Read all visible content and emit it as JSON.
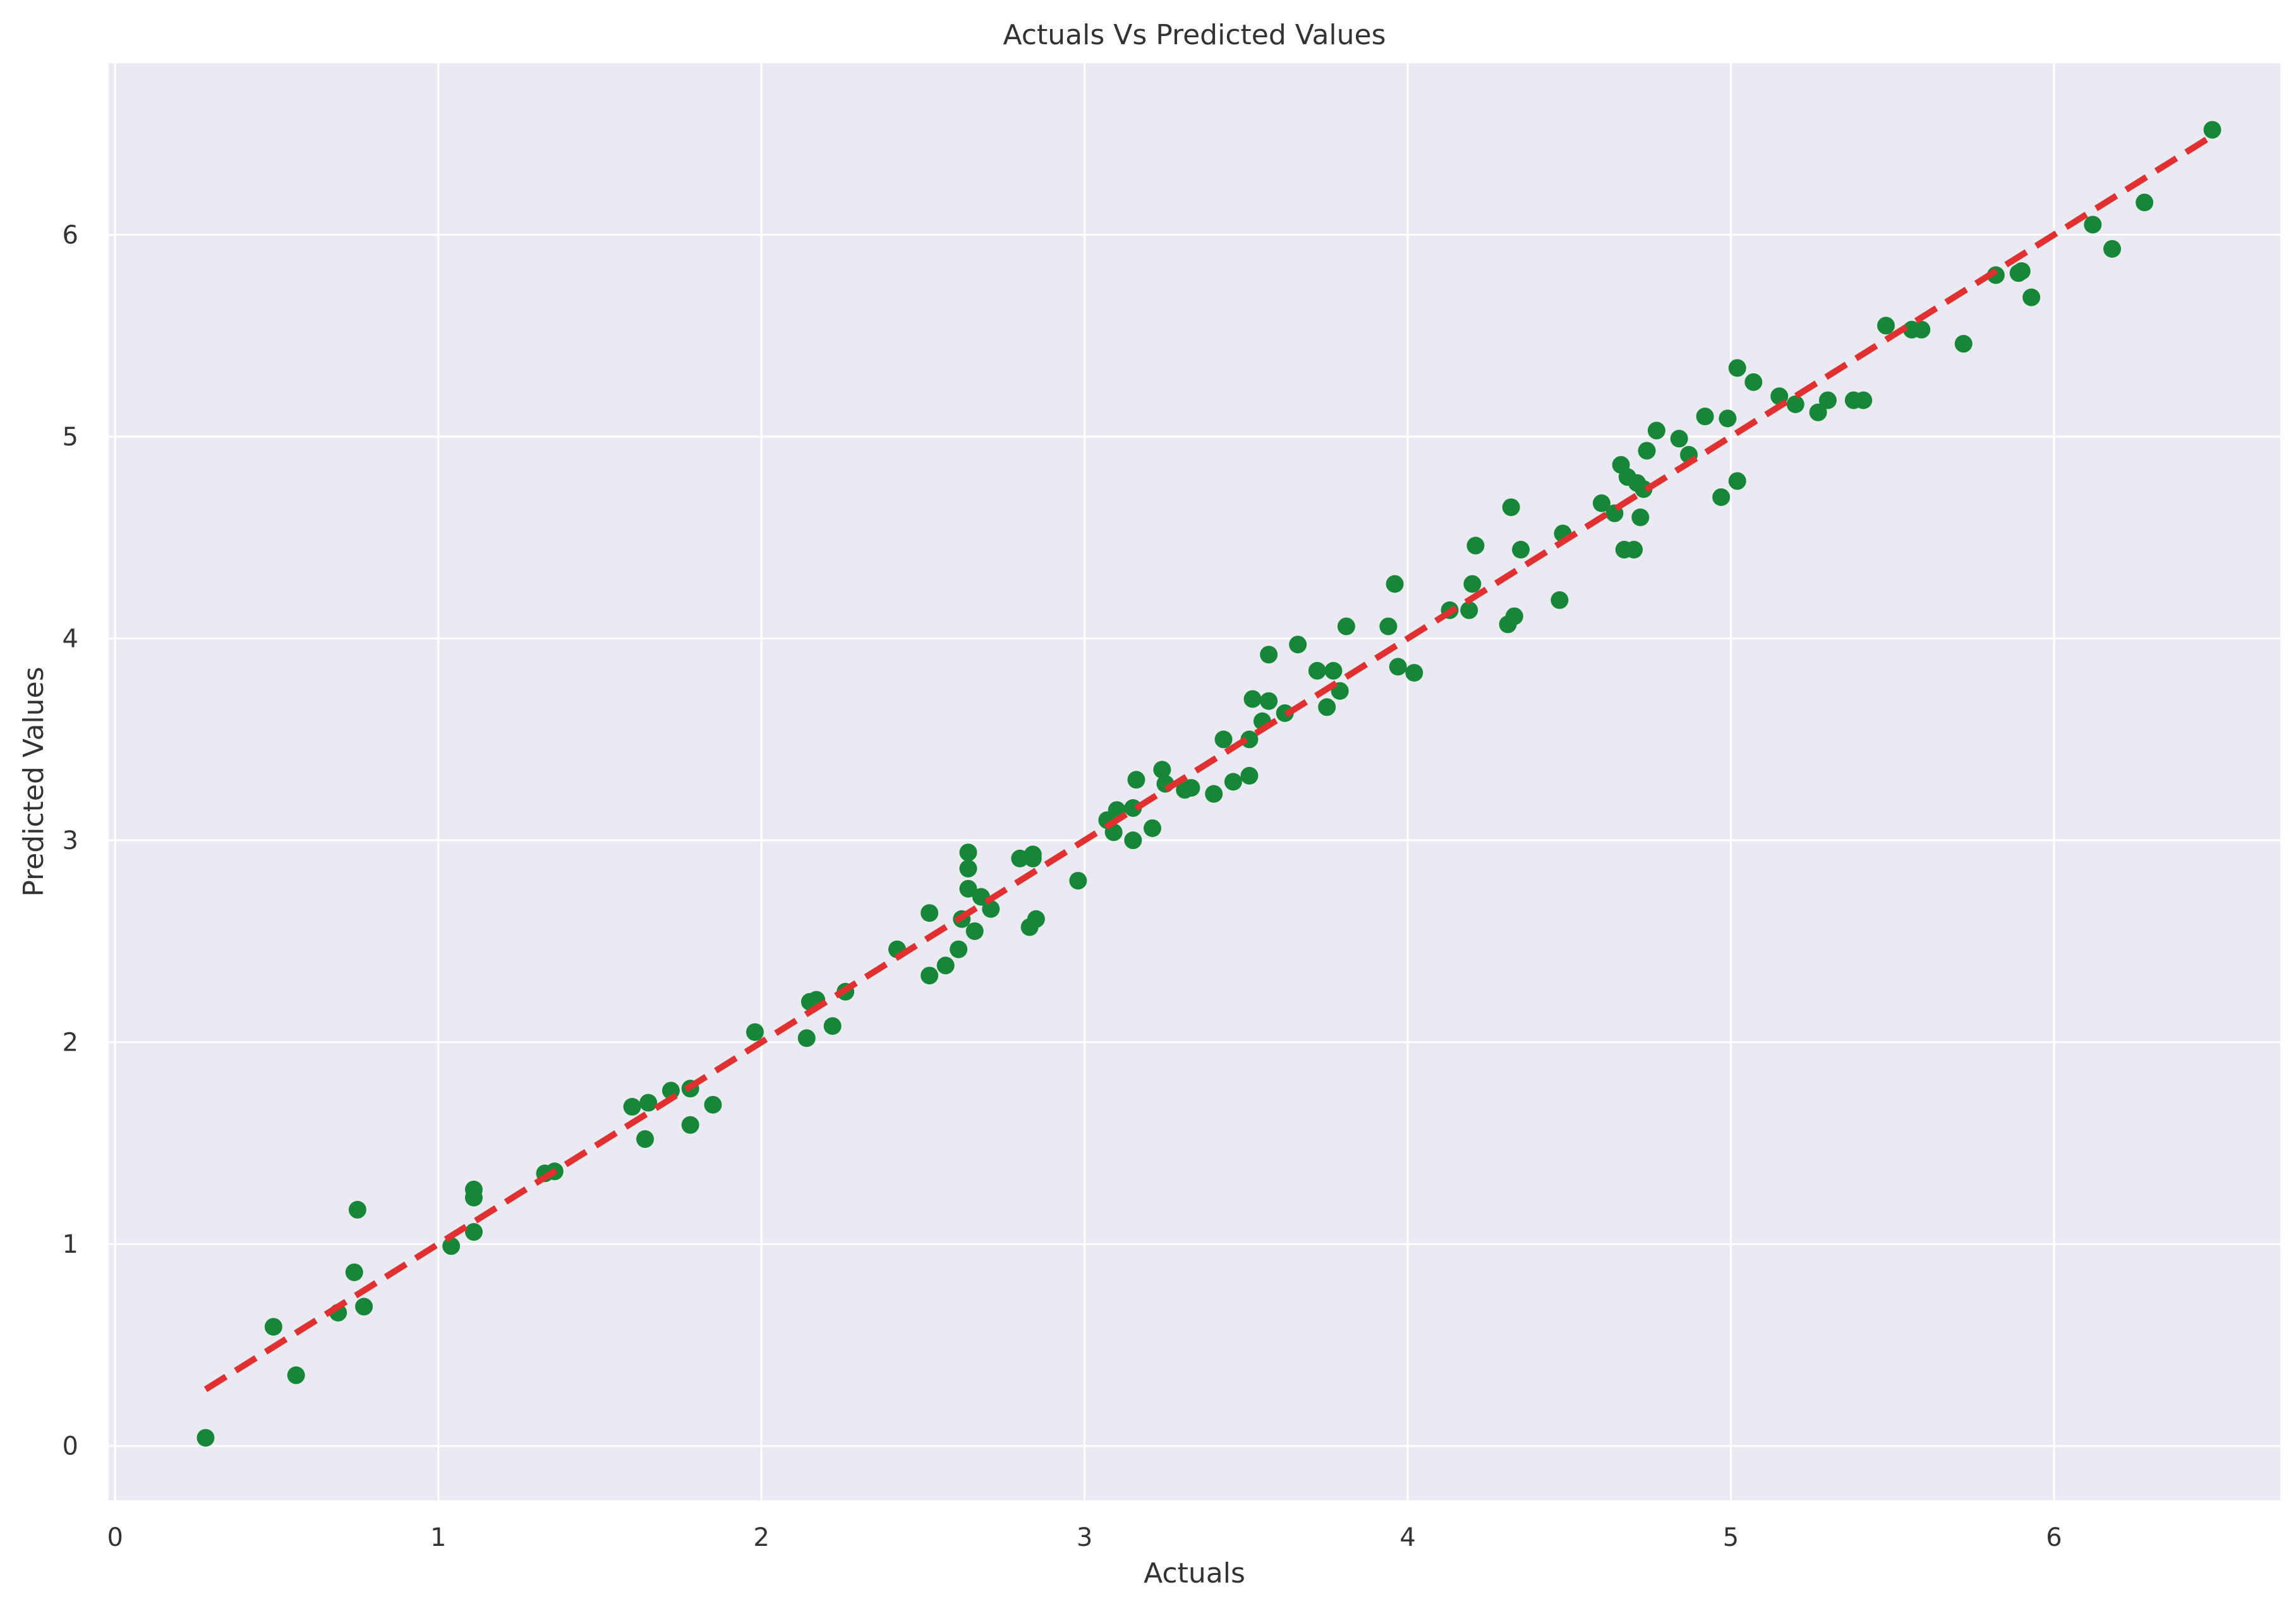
{
  "chart_data": {
    "type": "scatter",
    "title": "Actuals Vs Predicted Values",
    "xlabel": "Actuals",
    "ylabel": "Predicted Values",
    "xlim": [
      -0.02,
      6.7
    ],
    "ylim": [
      -0.27,
      6.85
    ],
    "xticks": [
      0,
      1,
      2,
      3,
      4,
      5,
      6
    ],
    "yticks": [
      0,
      1,
      2,
      3,
      4,
      5,
      6
    ],
    "grid": true,
    "colors": {
      "background": "#eaeaf2",
      "grid": "#ffffff",
      "points": "#168736",
      "line": "#e03030"
    },
    "series": [
      {
        "type": "scatter",
        "points": [
          [
            0.28,
            0.04
          ],
          [
            0.49,
            0.59
          ],
          [
            0.56,
            0.35
          ],
          [
            0.69,
            0.66
          ],
          [
            0.74,
            0.86
          ],
          [
            0.75,
            1.17
          ],
          [
            0.77,
            0.69
          ],
          [
            1.04,
            0.99
          ],
          [
            1.11,
            1.06
          ],
          [
            1.11,
            1.23
          ],
          [
            1.11,
            1.27
          ],
          [
            1.33,
            1.35
          ],
          [
            1.36,
            1.36
          ],
          [
            1.6,
            1.68
          ],
          [
            1.64,
            1.52
          ],
          [
            1.65,
            1.7
          ],
          [
            1.72,
            1.76
          ],
          [
            1.78,
            1.59
          ],
          [
            1.78,
            1.77
          ],
          [
            1.85,
            1.69
          ],
          [
            1.98,
            2.05
          ],
          [
            2.14,
            2.02
          ],
          [
            2.15,
            2.2
          ],
          [
            2.17,
            2.21
          ],
          [
            2.22,
            2.08
          ],
          [
            2.26,
            2.25
          ],
          [
            2.42,
            2.46
          ],
          [
            2.52,
            2.33
          ],
          [
            2.52,
            2.64
          ],
          [
            2.57,
            2.38
          ],
          [
            2.61,
            2.46
          ],
          [
            2.62,
            2.61
          ],
          [
            2.64,
            2.76
          ],
          [
            2.64,
            2.86
          ],
          [
            2.64,
            2.94
          ],
          [
            2.66,
            2.55
          ],
          [
            2.68,
            2.72
          ],
          [
            2.71,
            2.66
          ],
          [
            2.8,
            2.91
          ],
          [
            2.83,
            2.57
          ],
          [
            2.84,
            2.91
          ],
          [
            2.84,
            2.93
          ],
          [
            2.85,
            2.61
          ],
          [
            2.98,
            2.8
          ],
          [
            3.07,
            3.1
          ],
          [
            3.09,
            3.04
          ],
          [
            3.1,
            3.15
          ],
          [
            3.15,
            3.16
          ],
          [
            3.15,
            3.0
          ],
          [
            3.16,
            3.3
          ],
          [
            3.21,
            3.06
          ],
          [
            3.24,
            3.35
          ],
          [
            3.25,
            3.28
          ],
          [
            3.31,
            3.25
          ],
          [
            3.33,
            3.26
          ],
          [
            3.4,
            3.23
          ],
          [
            3.43,
            3.5
          ],
          [
            3.46,
            3.29
          ],
          [
            3.51,
            3.32
          ],
          [
            3.51,
            3.5
          ],
          [
            3.52,
            3.7
          ],
          [
            3.55,
            3.59
          ],
          [
            3.57,
            3.69
          ],
          [
            3.57,
            3.92
          ],
          [
            3.62,
            3.63
          ],
          [
            3.66,
            3.97
          ],
          [
            3.72,
            3.84
          ],
          [
            3.75,
            3.66
          ],
          [
            3.77,
            3.84
          ],
          [
            3.79,
            3.74
          ],
          [
            3.81,
            4.06
          ],
          [
            3.94,
            4.06
          ],
          [
            3.96,
            4.27
          ],
          [
            3.97,
            3.86
          ],
          [
            4.02,
            3.83
          ],
          [
            4.13,
            4.14
          ],
          [
            4.19,
            4.14
          ],
          [
            4.2,
            4.27
          ],
          [
            4.21,
            4.46
          ],
          [
            4.31,
            4.07
          ],
          [
            4.32,
            4.65
          ],
          [
            4.33,
            4.11
          ],
          [
            4.35,
            4.44
          ],
          [
            4.47,
            4.19
          ],
          [
            4.48,
            4.52
          ],
          [
            4.6,
            4.67
          ],
          [
            4.64,
            4.62
          ],
          [
            4.66,
            4.86
          ],
          [
            4.67,
            4.44
          ],
          [
            4.68,
            4.8
          ],
          [
            4.7,
            4.44
          ],
          [
            4.71,
            4.77
          ],
          [
            4.72,
            4.6
          ],
          [
            4.73,
            4.74
          ],
          [
            4.74,
            4.93
          ],
          [
            4.77,
            5.03
          ],
          [
            4.84,
            4.99
          ],
          [
            4.87,
            4.91
          ],
          [
            4.92,
            5.1
          ],
          [
            4.97,
            4.7
          ],
          [
            4.99,
            5.09
          ],
          [
            5.02,
            4.78
          ],
          [
            5.02,
            5.34
          ],
          [
            5.07,
            5.27
          ],
          [
            5.15,
            5.2
          ],
          [
            5.2,
            5.16
          ],
          [
            5.27,
            5.12
          ],
          [
            5.3,
            5.18
          ],
          [
            5.38,
            5.18
          ],
          [
            5.41,
            5.18
          ],
          [
            5.48,
            5.55
          ],
          [
            5.56,
            5.53
          ],
          [
            5.59,
            5.53
          ],
          [
            5.72,
            5.46
          ],
          [
            5.82,
            5.8
          ],
          [
            5.89,
            5.81
          ],
          [
            5.9,
            5.82
          ],
          [
            5.93,
            5.69
          ],
          [
            6.12,
            6.05
          ],
          [
            6.18,
            5.93
          ],
          [
            6.28,
            6.16
          ],
          [
            6.49,
            6.52
          ]
        ]
      },
      {
        "type": "line",
        "style": "dashed",
        "points": [
          [
            0.28,
            0.28
          ],
          [
            6.49,
            6.49
          ]
        ]
      }
    ]
  }
}
